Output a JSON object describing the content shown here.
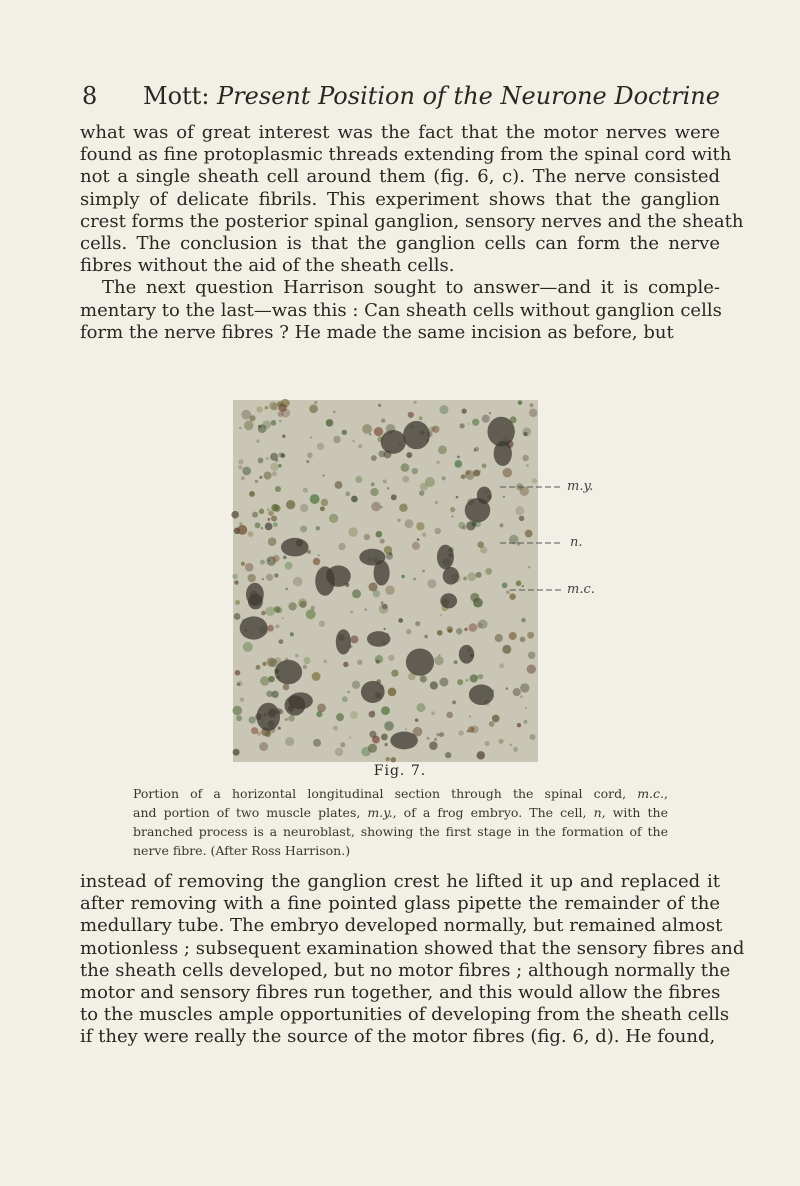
{
  "header": {
    "page_number": "8",
    "author": "Mott",
    "separator": ":",
    "title": "Present Position of the Neurone Doctrine"
  },
  "paragraphs": [
    {
      "indent_first": false,
      "lines": [
        "what was of great interest was the fact that the motor nerves were",
        "found as fine protoplasmic threads extending from the spinal cord with",
        "not a single sheath cell around them (fig. 6, c). The nerve consisted",
        "simply of delicate fibrils. This experiment shows that the ganglion",
        "crest forms the posterior spinal ganglion, sensory nerves and the sheath",
        "cells. The conclusion is that the ganglion cells can form the nerve",
        "fibres without the aid of the sheath cells."
      ]
    },
    {
      "indent_first": true,
      "lines": [
        "The next question Harrison sought to answer—and it is comple-",
        "mentary to the last—was this : Can sheath cells without ganglion cells",
        "form the nerve fibres ? He made the same incision as before, but"
      ]
    }
  ],
  "figure": {
    "labels": [
      "m.y.",
      "n.",
      "m.c."
    ],
    "number": "Fig. 7.",
    "caption_lines": [
      [
        "Portion of a horizontal longitudinal section through the spinal cord, ",
        {
          "italic": "m.c."
        },
        ","
      ],
      [
        "and portion of two muscle plates, ",
        {
          "italic": "m.y."
        },
        ", of a frog embryo. The cell, ",
        {
          "italic": "n"
        },
        ", with the"
      ],
      [
        "branched process is a neuroblast, showing the first stage in the formation of the"
      ],
      [
        "nerve fibre. (After Ross Harrison.)"
      ]
    ]
  },
  "paragraphs_after": [
    {
      "indent_first": false,
      "lines": [
        "instead of removing the ganglion crest he lifted it up and replaced it",
        "after removing with a fine pointed glass pipette the remainder of the",
        "medullary tube. The embryo developed normally, but remained almost",
        "motionless ; subsequent examination showed that the sensory fibres and",
        "the sheath cells developed, but no motor fibres ; although normally the",
        "motor and sensory fibres run together, and this would allow the fibres",
        "to the muscles ample opportunities of developing from the sheath cells",
        "if they were really the source of the motor fibres (fig. 6, d). He found,"
      ]
    }
  ]
}
